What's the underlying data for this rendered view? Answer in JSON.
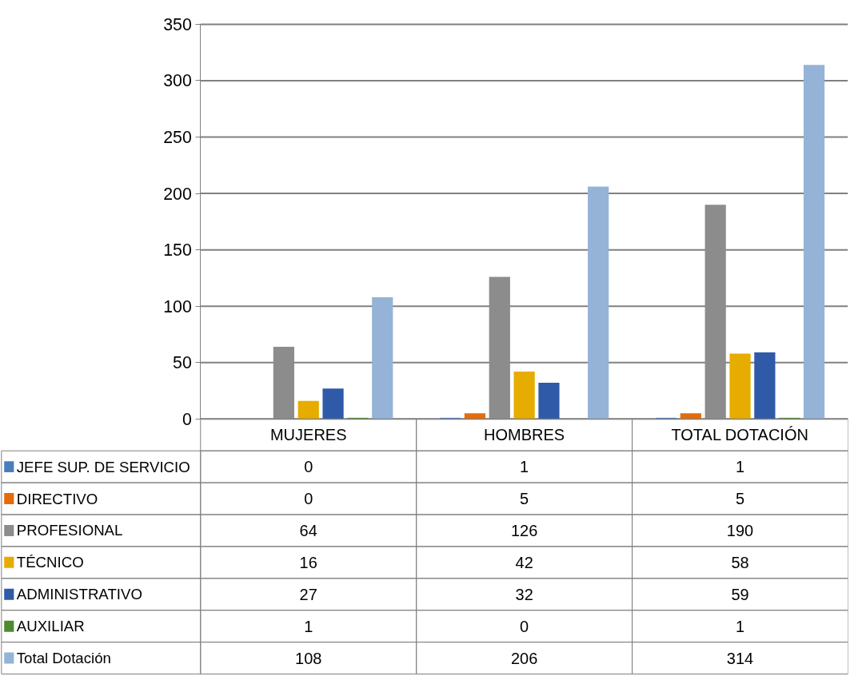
{
  "chart_data": {
    "type": "bar",
    "categories": [
      "MUJERES",
      "HOMBRES",
      "TOTAL DOTACIÓN"
    ],
    "series": [
      {
        "name": "JEFE SUP. DE SERVICIO",
        "color": "#4a7ebb",
        "values": [
          0,
          1,
          1
        ]
      },
      {
        "name": "DIRECTIVO",
        "color": "#e46c0a",
        "values": [
          0,
          5,
          5
        ]
      },
      {
        "name": "PROFESIONAL",
        "color": "#8c8c8c",
        "values": [
          64,
          126,
          190
        ]
      },
      {
        "name": "TÉCNICO",
        "color": "#e6ac00",
        "values": [
          16,
          42,
          58
        ]
      },
      {
        "name": "ADMINISTRATIVO",
        "color": "#2e5aa8",
        "values": [
          27,
          32,
          59
        ]
      },
      {
        "name": "AUXILIAR",
        "color": "#4e8a2e",
        "values": [
          1,
          0,
          1
        ]
      },
      {
        "name": "Total Dotación",
        "color": "#95b3d7",
        "values": [
          108,
          206,
          314
        ]
      }
    ],
    "ylim": [
      0,
      350
    ],
    "yticks": [
      0,
      50,
      100,
      150,
      200,
      250,
      300,
      350
    ],
    "grid": "y",
    "tick_labels": "y",
    "data_labels": true,
    "legend": "bottom"
  }
}
